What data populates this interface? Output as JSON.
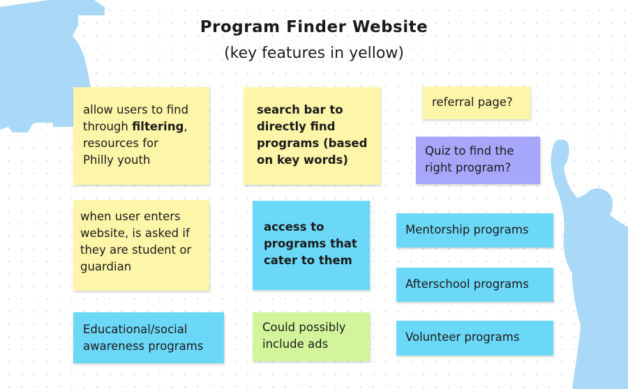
{
  "title": "Program Finder Website",
  "subtitle": "(key features in yellow)",
  "colors": {
    "yellow": "#fdf6a8",
    "blue": "#6cd8f8",
    "violet": "#a6a6fb",
    "green": "#d2f59b",
    "silhouette": "#a9d9f7"
  },
  "notes": {
    "filtering": {
      "before": "allow users to find\nthrough ",
      "bold": "filtering",
      "after": ",\nresources for\nPhilly youth"
    },
    "search_bar": "search bar to\ndirectly find\nprograms (based\non key words)",
    "referral": "referral page?",
    "quiz": "Quiz to find the\nright program?",
    "user_type": "when user enters\nwebsite, is asked if\nthey are student or\nguardian",
    "access": "access to\nprograms that\ncater to them",
    "mentorship": "Mentorship programs",
    "afterschool": "Afterschool programs",
    "educational": "Educational/social\nawareness programs",
    "ads": "Could possibly\ninclude ads",
    "volunteer": "Volunteer programs"
  },
  "decorations": [
    "liberty-bell-silhouette",
    "cheering-person-silhouette"
  ]
}
